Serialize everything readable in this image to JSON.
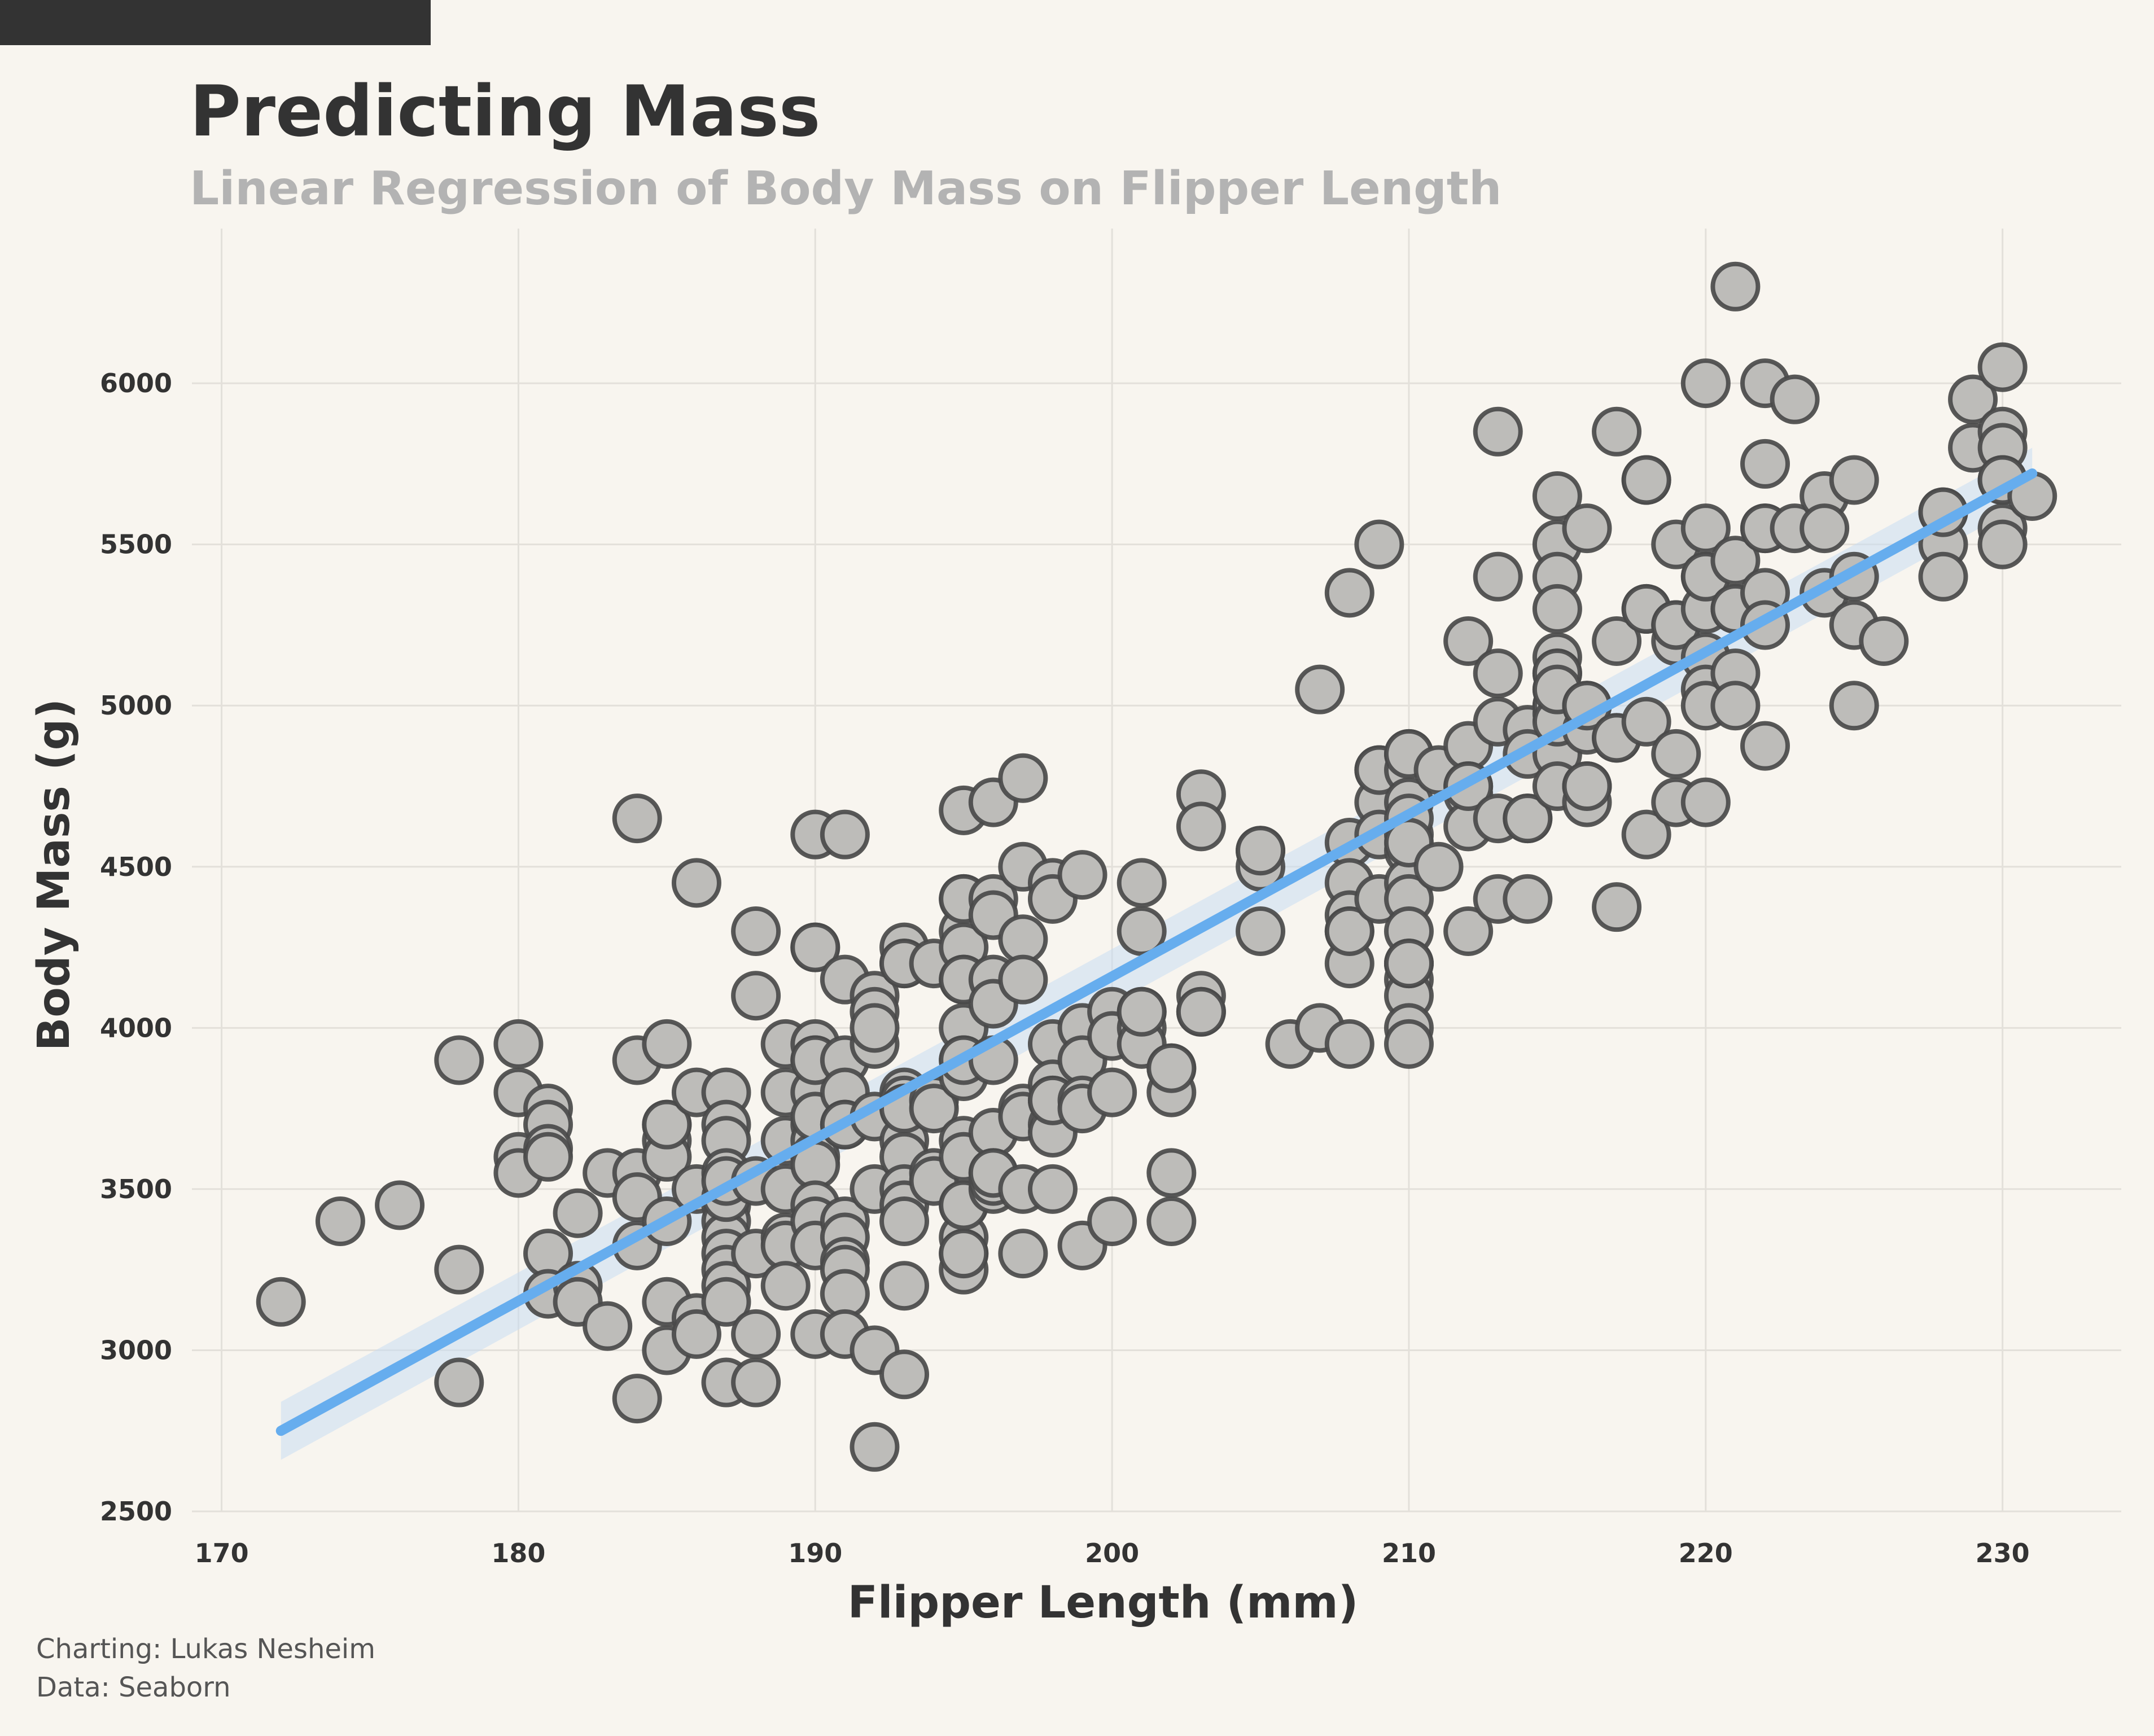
{
  "colors": {
    "background": "#f8f5ef",
    "title": "#333333",
    "subtitle": "#b3b3b3",
    "point_fill": "#bdbcb9",
    "point_edge": "#4a4a4a",
    "regression_line": "#66adee",
    "confidence_band": "#c8dcf2",
    "grid": "#e3e0da",
    "header_bar": "#333333"
  },
  "credits": {
    "charting": "Charting: Lukas Nesheim",
    "data": "Data: Seaborn"
  },
  "chart_data": {
    "type": "scatter",
    "title": "Predicting Mass",
    "subtitle": "Linear Regression of Body Mass on Flipper Length",
    "xlabel": "Flipper Length (mm)",
    "ylabel": "Body Mass (g)",
    "xlim": [
      169,
      234
    ],
    "ylim": [
      2500,
      6480
    ],
    "xticks": [
      "170",
      "180",
      "190",
      "200",
      "210",
      "220",
      "230"
    ],
    "yticks": [
      "2500",
      "3000",
      "3500",
      "4000",
      "4500",
      "5000",
      "5500",
      "6000"
    ],
    "grid": true,
    "regression": {
      "x": [
        172,
        231
      ],
      "y": [
        2750,
        5720
      ],
      "ci_lower": [
        2660,
        5640
      ],
      "ci_upper": [
        2840,
        5800
      ]
    },
    "points": {
      "x": [
        172,
        174,
        176,
        178,
        178,
        178,
        180,
        180,
        180,
        180,
        181,
        181,
        181,
        181,
        181,
        181,
        182,
        182,
        182,
        183,
        183,
        184,
        184,
        184,
        184,
        184,
        184,
        185,
        185,
        185,
        185,
        185,
        185,
        185,
        185,
        186,
        186,
        186,
        186,
        186,
        187,
        187,
        187,
        187,
        187,
        187,
        187,
        187,
        187,
        187,
        187,
        187,
        187,
        187,
        188,
        188,
        188,
        188,
        188,
        188,
        189,
        189,
        189,
        189,
        189,
        189,
        189,
        190,
        190,
        190,
        190,
        190,
        190,
        190,
        190,
        190,
        190,
        190,
        190,
        190,
        190,
        190,
        190,
        191,
        191,
        191,
        191,
        191,
        191,
        191,
        191,
        191,
        191,
        191,
        191,
        192,
        192,
        192,
        192,
        192,
        192,
        192,
        192,
        193,
        193,
        193,
        193,
        193,
        193,
        193,
        193,
        193,
        193,
        193,
        193,
        193,
        193,
        194,
        194,
        194,
        194,
        194,
        195,
        195,
        195,
        195,
        195,
        195,
        195,
        195,
        195,
        195,
        195,
        195,
        195,
        195,
        195,
        195,
        195,
        195,
        195,
        196,
        196,
        196,
        196,
        196,
        196,
        196,
        196,
        196,
        196,
        196,
        197,
        197,
        197,
        197,
        197,
        197,
        197,
        197,
        198,
        198,
        198,
        198,
        198,
        198,
        198,
        198,
        198,
        199,
        199,
        199,
        199,
        199,
        199,
        200,
        200,
        200,
        200,
        201,
        201,
        201,
        201,
        201,
        201,
        202,
        202,
        202,
        202,
        202,
        203,
        203,
        203,
        203,
        203,
        205,
        205,
        205,
        205,
        206,
        207,
        207,
        208,
        208,
        208,
        208,
        208,
        208,
        208,
        208,
        209,
        209,
        209,
        209,
        209,
        209,
        210,
        210,
        210,
        210,
        210,
        210,
        210,
        210,
        210,
        210,
        210,
        210,
        210,
        210,
        210,
        210,
        210,
        210,
        211,
        211,
        212,
        212,
        212,
        212,
        212,
        212,
        212,
        213,
        213,
        213,
        213,
        213,
        213,
        214,
        214,
        214,
        214,
        214,
        215,
        215,
        215,
        215,
        215,
        215,
        215,
        215,
        215,
        215,
        215,
        215,
        215,
        215,
        215,
        216,
        216,
        216,
        216,
        216,
        216,
        216,
        217,
        217,
        217,
        217,
        217,
        218,
        218,
        218,
        218,
        218,
        218,
        219,
        219,
        219,
        219,
        219,
        219,
        220,
        220,
        220,
        220,
        220,
        220,
        220,
        220,
        220,
        221,
        221,
        221,
        221,
        221,
        221,
        222,
        222,
        222,
        222,
        222,
        222,
        222,
        223,
        223,
        224,
        224,
        224,
        225,
        225,
        225,
        225,
        226,
        228,
        228,
        228,
        228,
        229,
        229,
        230,
        230,
        230,
        230,
        230,
        230,
        230,
        231
      ],
      "y": [
        3150,
        3400,
        3450,
        3900,
        3250,
        2900,
        3950,
        3800,
        3600,
        3550,
        3750,
        3700,
        3625,
        3600,
        3300,
        3175,
        3425,
        3200,
        3150,
        3550,
        3075,
        4650,
        3900,
        3550,
        3475,
        3325,
        2850,
        3950,
        3700,
        3650,
        3600,
        3400,
        3150,
        3000,
        3700,
        4450,
        3800,
        3500,
        3100,
        3050,
        3800,
        3700,
        3650,
        3550,
        3450,
        3400,
        3350,
        3300,
        3250,
        3200,
        3150,
        2900,
        3475,
        3525,
        4300,
        4100,
        3525,
        3300,
        3050,
        2900,
        3950,
        3800,
        3650,
        3500,
        3350,
        3325,
        3200,
        4600,
        4250,
        3950,
        3900,
        3800,
        3700,
        3650,
        3600,
        3575,
        3450,
        3400,
        3325,
        3050,
        4250,
        3900,
        3725,
        4600,
        4150,
        3900,
        3800,
        3700,
        3400,
        3350,
        3275,
        3250,
        3175,
        3050,
        3700,
        4100,
        4050,
        3950,
        3725,
        3500,
        3000,
        2700,
        4000,
        4250,
        4200,
        3800,
        3775,
        3750,
        3650,
        3600,
        3500,
        3450,
        3400,
        3200,
        2925,
        3750,
        4200,
        4200,
        3775,
        3750,
        3550,
        3525,
        4675,
        4400,
        4300,
        4250,
        4150,
        4000,
        3900,
        3850,
        3650,
        3600,
        3450,
        3350,
        3300,
        3250,
        4400,
        3450,
        3300,
        4150,
        3900,
        4700,
        4400,
        4350,
        4150,
        3900,
        3675,
        3550,
        3500,
        4075,
        3525,
        3550,
        4775,
        4500,
        4275,
        4150,
        3750,
        3725,
        3500,
        3300,
        4450,
        4400,
        3950,
        3825,
        3775,
        3700,
        3675,
        3500,
        3775,
        4475,
        4000,
        3900,
        3775,
        3750,
        3325,
        4050,
        3975,
        3800,
        3400,
        4450,
        4300,
        4050,
        4000,
        3950,
        4050,
        3875,
        3800,
        3550,
        3400,
        3875,
        4725,
        4625,
        4100,
        4050,
        4050,
        4550,
        4500,
        4300,
        4550,
        3950,
        5050,
        4000,
        5350,
        4575,
        4450,
        4350,
        4300,
        4200,
        3950,
        4300,
        5500,
        4800,
        4700,
        4600,
        4400,
        4800,
        4850,
        4800,
        4700,
        4600,
        4550,
        4450,
        4400,
        4300,
        4200,
        4150,
        4100,
        4000,
        3950,
        4200,
        4850,
        4650,
        4575,
        4200,
        4800,
        4500,
        5200,
        4875,
        4750,
        4725,
        4625,
        4300,
        4750,
        5850,
        5400,
        5100,
        4950,
        4650,
        4400,
        4925,
        4850,
        4650,
        4400,
        4650,
        5650,
        5500,
        5400,
        5300,
        5150,
        5100,
        5050,
        5000,
        4975,
        4850,
        4750,
        5000,
        4950,
        5100,
        5050,
        5550,
        5000,
        4925,
        4750,
        4700,
        4750,
        5000,
        5850,
        5200,
        4900,
        4375,
        4900,
        5700,
        5300,
        4950,
        4600,
        5700,
        5300,
        5500,
        5250,
        5200,
        4850,
        4700,
        5250,
        6000,
        5550,
        5400,
        5300,
        5150,
        5050,
        5000,
        4700,
        5400,
        6300,
        5450,
        5300,
        5100,
        5000,
        5300,
        6000,
        5750,
        5550,
        5350,
        5250,
        4875,
        5550,
        5950,
        5550,
        5650,
        5550,
        5350,
        5700,
        5400,
        5250,
        5000,
        5200,
        5600,
        5500,
        5400,
        5600,
        5950,
        5800,
        6050,
        5850,
        5800,
        5700,
        5550,
        5500,
        5700,
        5650
      ]
    }
  }
}
